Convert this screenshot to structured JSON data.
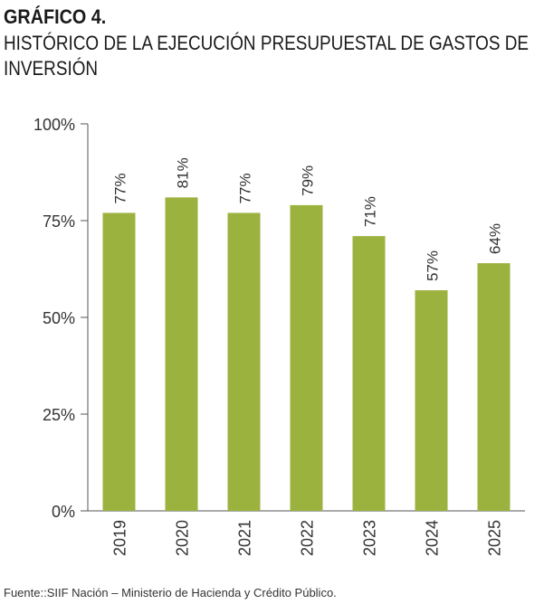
{
  "header": {
    "figure_label": "GRÁFICO 4.",
    "title": "HISTÓRICO DE LA EJECUCIÓN PRESUPUESTAL DE GASTOS DE INVERSIÓN"
  },
  "source": "Fuente::SIIF Nación – Ministerio de Hacienda y Crédito Público.",
  "colors": {
    "bar": "#9cb23e",
    "axis": "#555555",
    "text": "#333333"
  },
  "chart_data": {
    "type": "bar",
    "categories": [
      "2019",
      "2020",
      "2021",
      "2022",
      "2023",
      "2024",
      "2025"
    ],
    "values": [
      77,
      81,
      77,
      79,
      71,
      57,
      64
    ],
    "data_labels": [
      "77%",
      "81%",
      "77%",
      "79%",
      "71%",
      "57%",
      "64%"
    ],
    "y_ticks": [
      {
        "value": 0,
        "label": "0%"
      },
      {
        "value": 25,
        "label": "25%"
      },
      {
        "value": 50,
        "label": "50%"
      },
      {
        "value": 75,
        "label": "75%"
      },
      {
        "value": 100,
        "label": "100%"
      }
    ],
    "ylim": [
      0,
      100
    ],
    "grid": false,
    "legend": "none",
    "title": "",
    "xlabel": "",
    "ylabel": ""
  }
}
